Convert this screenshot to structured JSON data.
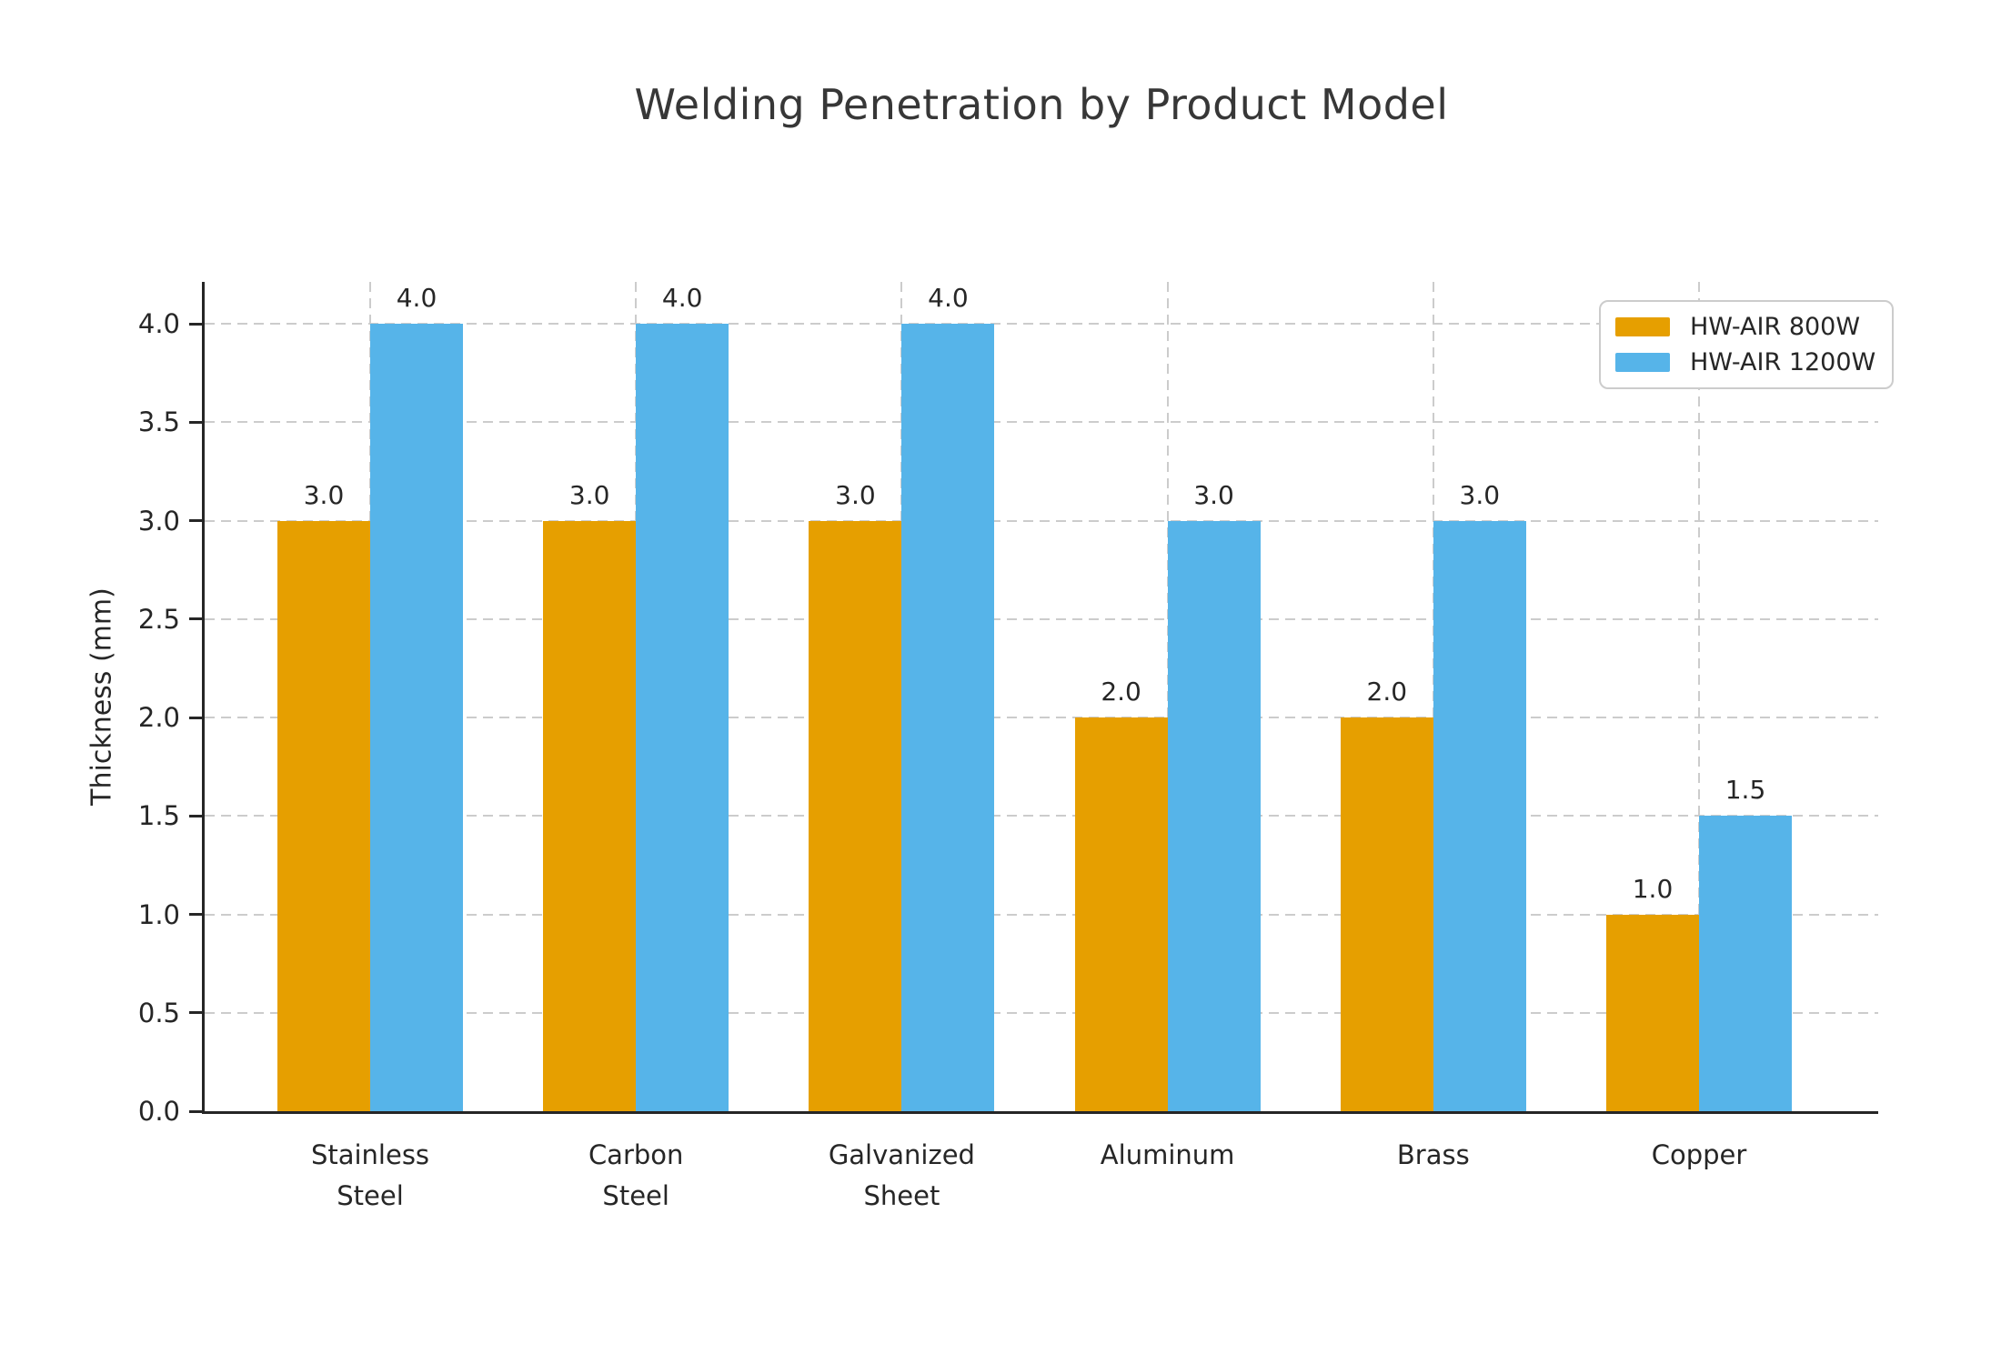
{
  "title": "Welding Penetration by Product Model",
  "colors": {
    "background": "#FFFFFF",
    "grid": "#CCCCCC",
    "axis": "#262626",
    "text": "#262626",
    "title_text": "#373737",
    "legend_border": "#CCCCCC",
    "series_orange": "#E69F00",
    "series_blue": "#56B4E9"
  },
  "chart_data": {
    "type": "bar",
    "title": "Welding Penetration by Product Model",
    "xlabel": "",
    "ylabel": "Thickness (mm)",
    "categories": [
      "Stainless\nSteel",
      "Carbon\nSteel",
      "Galvanized\nSheet",
      "Aluminum",
      "Brass",
      "Copper"
    ],
    "series": [
      {
        "name": "HW-AIR 800W",
        "color": "#E69F00",
        "values": [
          3.0,
          3.0,
          3.0,
          2.0,
          2.0,
          1.0
        ]
      },
      {
        "name": "HW-AIR 1200W",
        "color": "#56B4E9",
        "values": [
          4.0,
          4.0,
          4.0,
          3.0,
          3.0,
          1.5
        ]
      }
    ],
    "bar_value_labels": [
      [
        "3.0",
        "3.0",
        "3.0",
        "2.0",
        "2.0",
        "1.0"
      ],
      [
        "4.0",
        "4.0",
        "4.0",
        "3.0",
        "3.0",
        "1.5"
      ]
    ],
    "yticks": [
      0.0,
      0.5,
      1.0,
      1.5,
      2.0,
      2.5,
      3.0,
      3.5,
      4.0
    ],
    "ytick_labels": [
      "0.0",
      "0.5",
      "1.0",
      "1.5",
      "2.0",
      "2.5",
      "3.0",
      "3.5",
      "4.0"
    ],
    "ylim": [
      0,
      4.21
    ],
    "grid": true,
    "grid_style": "dashed",
    "legend_position": "upper right"
  }
}
